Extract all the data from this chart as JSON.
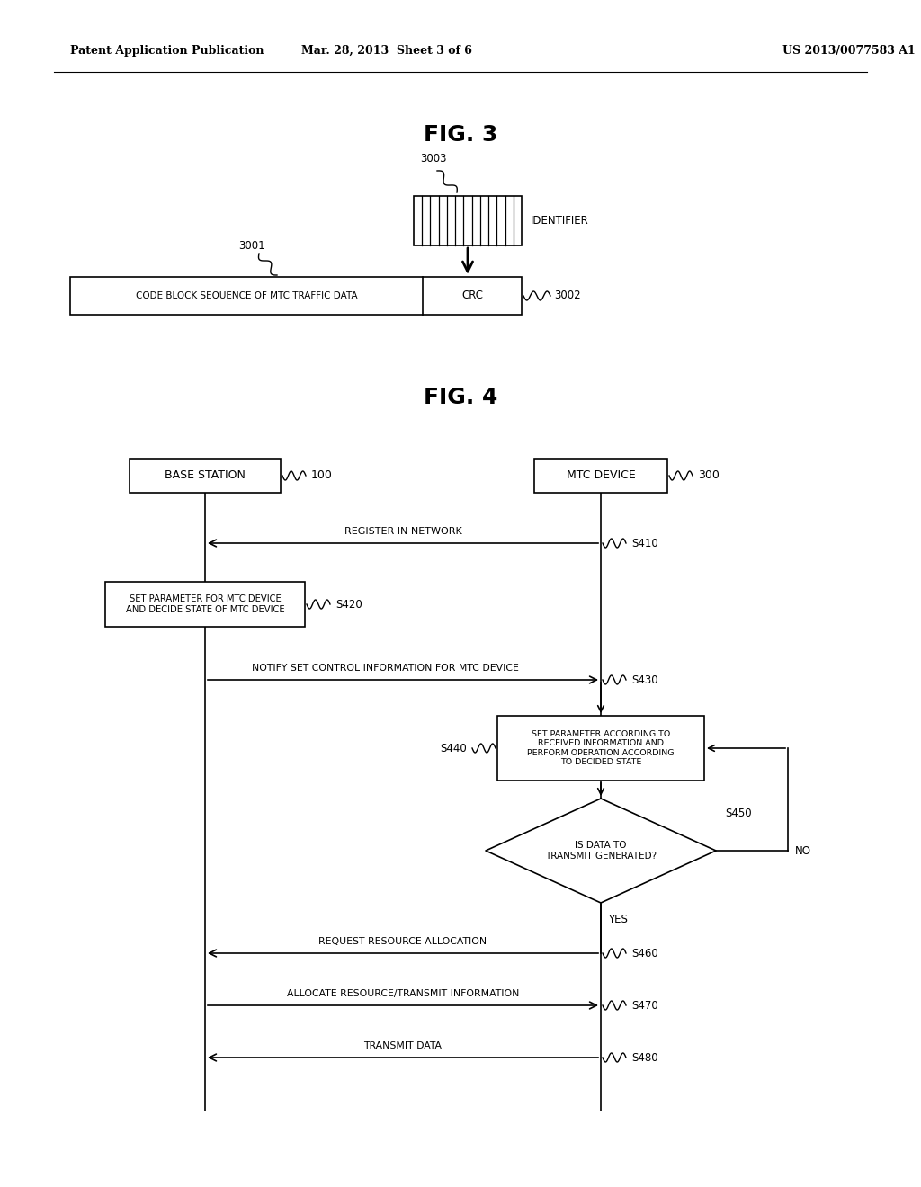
{
  "bg_color": "#ffffff",
  "header_left": "Patent Application Publication",
  "header_mid": "Mar. 28, 2013  Sheet 3 of 6",
  "header_right": "US 2013/0077583 A1",
  "fig3_title": "FIG. 3",
  "fig4_title": "FIG. 4",
  "fig3": {
    "code_block_label": "CODE BLOCK SEQUENCE OF MTC TRAFFIC DATA",
    "crc_label": "CRC",
    "identifier_label": "IDENTIFIER",
    "ref_3001": "3001",
    "ref_3002": "3002",
    "ref_3003": "3003"
  },
  "fig4": {
    "base_station_label": "BASE STATION",
    "base_station_ref": "100",
    "mtc_device_label": "MTC DEVICE",
    "mtc_device_ref": "300",
    "s410_text": "REGISTER IN NETWORK",
    "s410_id": "S410",
    "s420_text1": "SET PARAMETER FOR MTC DEVICE",
    "s420_text2": "AND DECIDE STATE OF MTC DEVICE",
    "s420_id": "S420",
    "s430_text": "NOTIFY SET CONTROL INFORMATION FOR MTC DEVICE",
    "s430_id": "S430",
    "s440_text": "SET PARAMETER ACCORDING TO\nRECEIVED INFORMATION AND\nPERFORM OPERATION ACCORDING\nTO DECIDED STATE",
    "s440_id": "S440",
    "s450_text": "IS DATA TO\nTRANSMIT GENERATED?",
    "s450_id": "S450",
    "s450_no": "NO",
    "s450_yes": "YES",
    "s460_text": "REQUEST RESOURCE ALLOCATION",
    "s460_id": "S460",
    "s470_text": "ALLOCATE RESOURCE/TRANSMIT INFORMATION",
    "s470_id": "S470",
    "s480_text": "TRANSMIT DATA",
    "s480_id": "S480"
  }
}
